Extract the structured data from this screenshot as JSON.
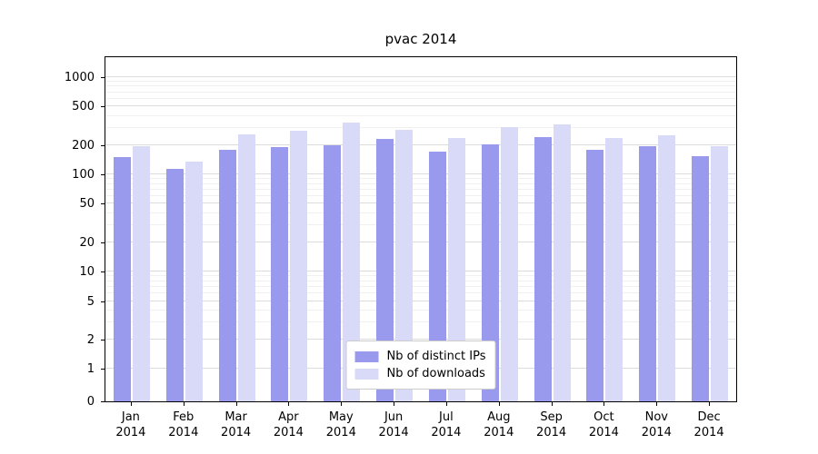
{
  "chart_data": {
    "type": "bar",
    "title": "pvac 2014",
    "xlabel": "",
    "ylabel": "",
    "yscale": "symlog",
    "grid": true,
    "legend_position": "lower center",
    "categories": [
      "Jan",
      "Feb",
      "Mar",
      "Apr",
      "May",
      "Jun",
      "Jul",
      "Aug",
      "Sep",
      "Oct",
      "Nov",
      "Dec"
    ],
    "x_year": "2014",
    "yticks": [
      0,
      1,
      2,
      5,
      10,
      20,
      50,
      100,
      200,
      500,
      1000
    ],
    "ylim": [
      0,
      1600
    ],
    "series": [
      {
        "name": "Nb of distinct IPs",
        "color": "#9999ee",
        "values": [
          150,
          115,
          180,
          190,
          200,
          230,
          170,
          205,
          240,
          180,
          195,
          155
        ]
      },
      {
        "name": "Nb of downloads",
        "color": "#d9d9f8",
        "values": [
          195,
          135,
          260,
          280,
          340,
          290,
          235,
          310,
          330,
          235,
          255,
          195
        ]
      }
    ]
  }
}
